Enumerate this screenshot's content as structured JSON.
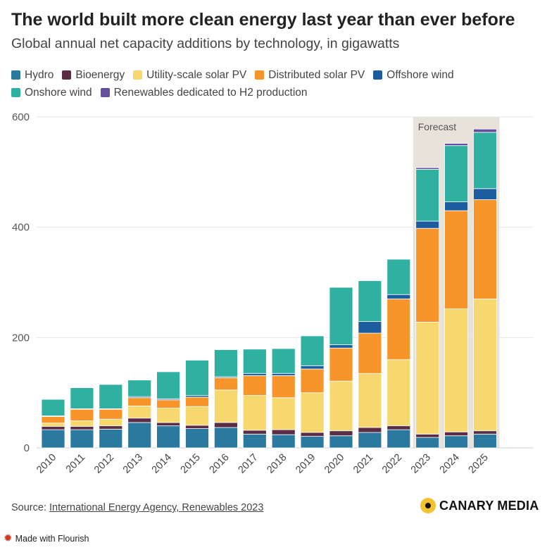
{
  "title": "The world built more clean energy last year than ever before",
  "subtitle": "Global annual net capacity additions by technology, in gigawatts",
  "source_prefix": "Source: ",
  "source_link": "International Energy Agency, Renewables 2023",
  "brand": "CANARY MEDIA",
  "made_with": "Made with Flourish",
  "colors": {
    "hydro": "#2c79a0",
    "bioenergy": "#5a2c45",
    "utility_solar": "#f7d86e",
    "distributed_solar": "#f7952b",
    "offshore_wind": "#1b5d9e",
    "onshore_wind": "#2fb0a1",
    "h2": "#664f9e",
    "forecast_band": "#e8e3da",
    "grid": "#e6e6e6"
  },
  "chart_data": {
    "type": "bar",
    "stacked": true,
    "categories": [
      "2010",
      "2011",
      "2012",
      "2013",
      "2014",
      "2015",
      "2016",
      "2017",
      "2018",
      "2019",
      "2020",
      "2021",
      "2022",
      "2023",
      "2024",
      "2025"
    ],
    "ylim": [
      0,
      600
    ],
    "yticks": [
      0,
      200,
      400,
      600
    ],
    "grid": true,
    "legend_position": "top-left",
    "annotation": {
      "label": "Forecast",
      "from": "2023",
      "to": "2025"
    },
    "series": [
      {
        "name": "Hydro",
        "key": "hydro",
        "values": [
          33,
          33,
          34,
          46,
          40,
          35,
          37,
          25,
          24,
          21,
          22,
          28,
          33,
          19,
          22,
          25
        ]
      },
      {
        "name": "Bioenergy",
        "key": "bioenergy",
        "values": [
          6,
          6,
          6,
          8,
          6,
          6,
          9,
          7,
          9,
          7,
          9,
          9,
          7,
          6,
          7,
          6
        ]
      },
      {
        "name": "Utility-scale solar PV",
        "key": "utility_solar",
        "values": [
          6,
          10,
          12,
          22,
          26,
          34,
          59,
          63,
          58,
          72,
          90,
          98,
          120,
          203,
          223,
          239
        ]
      },
      {
        "name": "Distributed solar PV",
        "key": "distributed_solar",
        "values": [
          12,
          21,
          18,
          15,
          15,
          17,
          22,
          36,
          40,
          43,
          60,
          73,
          110,
          170,
          178,
          180
        ]
      },
      {
        "name": "Offshore wind",
        "key": "offshore_wind",
        "values": [
          1,
          1,
          1,
          2,
          2,
          3,
          2,
          4,
          4,
          6,
          6,
          21,
          8,
          13,
          16,
          20
        ]
      },
      {
        "name": "Onshore wind",
        "key": "onshore_wind",
        "values": [
          30,
          38,
          44,
          30,
          49,
          64,
          49,
          44,
          45,
          54,
          104,
          74,
          64,
          94,
          102,
          102
        ]
      },
      {
        "name": "Renewables dedicated to H2 production",
        "key": "h2",
        "values": [
          0,
          0,
          0,
          0,
          0,
          0,
          0,
          0,
          0,
          0,
          0,
          0,
          0,
          3,
          4,
          6
        ]
      }
    ]
  }
}
